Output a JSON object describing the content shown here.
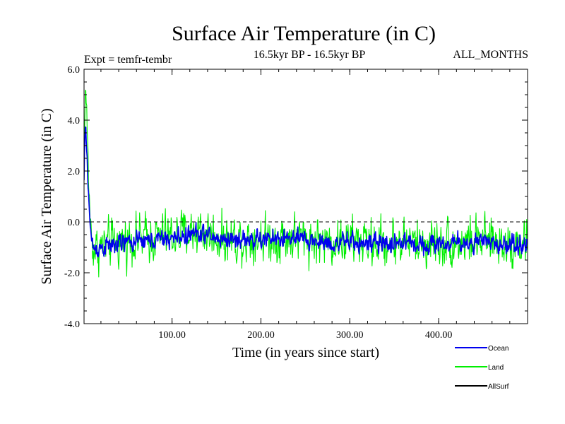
{
  "chart_data": {
    "type": "line",
    "title": "Surface Air Temperature (in C)",
    "subtitle": "16.5kyr BP - 16.5kyr BP",
    "left_note": "Expt = temfr-tembr",
    "right_note": "ALL_MONTHS",
    "xlabel": "Time (in years since start)",
    "ylabel": "Surface Air Temperature (in C)",
    "xlim": [
      1,
      500
    ],
    "ylim": [
      -4.0,
      6.0
    ],
    "x_ticks": [
      {
        "value": 100,
        "label": "100.00"
      },
      {
        "value": 200,
        "label": "200.00"
      },
      {
        "value": 300,
        "label": "300.00"
      },
      {
        "value": 400,
        "label": "400.00"
      }
    ],
    "y_ticks": [
      {
        "value": -4.0,
        "label": "-4.0"
      },
      {
        "value": -2.0,
        "label": "-2.0"
      },
      {
        "value": 0.0,
        "label": "0.0"
      },
      {
        "value": 2.0,
        "label": "2.0"
      },
      {
        "value": 4.0,
        "label": "4.0"
      },
      {
        "value": 6.0,
        "label": "6.0"
      }
    ],
    "zero_line": true,
    "legend_position": "bottom-right",
    "series": [
      {
        "name": "Land",
        "color": "#00ee00",
        "mean_curve": [
          [
            1,
            1.8
          ],
          [
            2,
            4.8
          ],
          [
            3,
            5.3
          ],
          [
            4,
            4.2
          ],
          [
            5,
            3.0
          ],
          [
            6,
            1.8
          ],
          [
            7,
            0.9
          ],
          [
            8,
            0.1
          ],
          [
            9,
            -0.4
          ],
          [
            10,
            -0.8
          ],
          [
            12,
            -1.0
          ],
          [
            15,
            -1.1
          ],
          [
            20,
            -1.0
          ],
          [
            30,
            -0.9
          ],
          [
            50,
            -0.7
          ],
          [
            80,
            -0.6
          ],
          [
            100,
            -0.55
          ],
          [
            120,
            -0.4
          ],
          [
            130,
            -0.3
          ],
          [
            140,
            -0.45
          ],
          [
            150,
            -0.6
          ],
          [
            160,
            -0.65
          ],
          [
            200,
            -0.65
          ],
          [
            230,
            -0.6
          ],
          [
            260,
            -0.7
          ],
          [
            280,
            -0.8
          ],
          [
            300,
            -0.75
          ],
          [
            320,
            -0.8
          ],
          [
            340,
            -0.85
          ],
          [
            360,
            -0.75
          ],
          [
            380,
            -0.85
          ],
          [
            400,
            -0.8
          ],
          [
            420,
            -0.8
          ],
          [
            440,
            -0.75
          ],
          [
            460,
            -0.8
          ],
          [
            480,
            -0.85
          ],
          [
            500,
            -0.8
          ]
        ],
        "noise_amplitude": 1.25
      },
      {
        "name": "Ocean",
        "color": "#0000ee",
        "mean_curve": [
          [
            1,
            1.6
          ],
          [
            2,
            3.4
          ],
          [
            3,
            3.6
          ],
          [
            4,
            2.8
          ],
          [
            5,
            2.0
          ],
          [
            6,
            1.2
          ],
          [
            7,
            0.4
          ],
          [
            8,
            -0.2
          ],
          [
            9,
            -0.6
          ],
          [
            10,
            -0.85
          ],
          [
            12,
            -1.0
          ],
          [
            15,
            -1.05
          ],
          [
            20,
            -1.0
          ],
          [
            30,
            -0.95
          ],
          [
            50,
            -0.8
          ],
          [
            80,
            -0.72
          ],
          [
            100,
            -0.65
          ],
          [
            120,
            -0.5
          ],
          [
            130,
            -0.42
          ],
          [
            140,
            -0.55
          ],
          [
            150,
            -0.65
          ],
          [
            160,
            -0.68
          ],
          [
            200,
            -0.7
          ],
          [
            230,
            -0.65
          ],
          [
            260,
            -0.75
          ],
          [
            280,
            -0.85
          ],
          [
            300,
            -0.8
          ],
          [
            320,
            -0.85
          ],
          [
            340,
            -0.88
          ],
          [
            360,
            -0.78
          ],
          [
            380,
            -0.88
          ],
          [
            400,
            -0.85
          ],
          [
            420,
            -0.85
          ],
          [
            440,
            -0.8
          ],
          [
            460,
            -0.85
          ],
          [
            480,
            -0.9
          ],
          [
            500,
            -0.85
          ]
        ],
        "noise_amplitude": 0.5
      },
      {
        "name": "AllSurf",
        "color": "#000000",
        "mean_curve": [],
        "noise_amplitude": 0
      }
    ],
    "legend": [
      {
        "name": "Ocean",
        "color": "#0000ee"
      },
      {
        "name": "Land",
        "color": "#00ee00"
      },
      {
        "name": "AllSurf",
        "color": "#000000"
      }
    ]
  }
}
